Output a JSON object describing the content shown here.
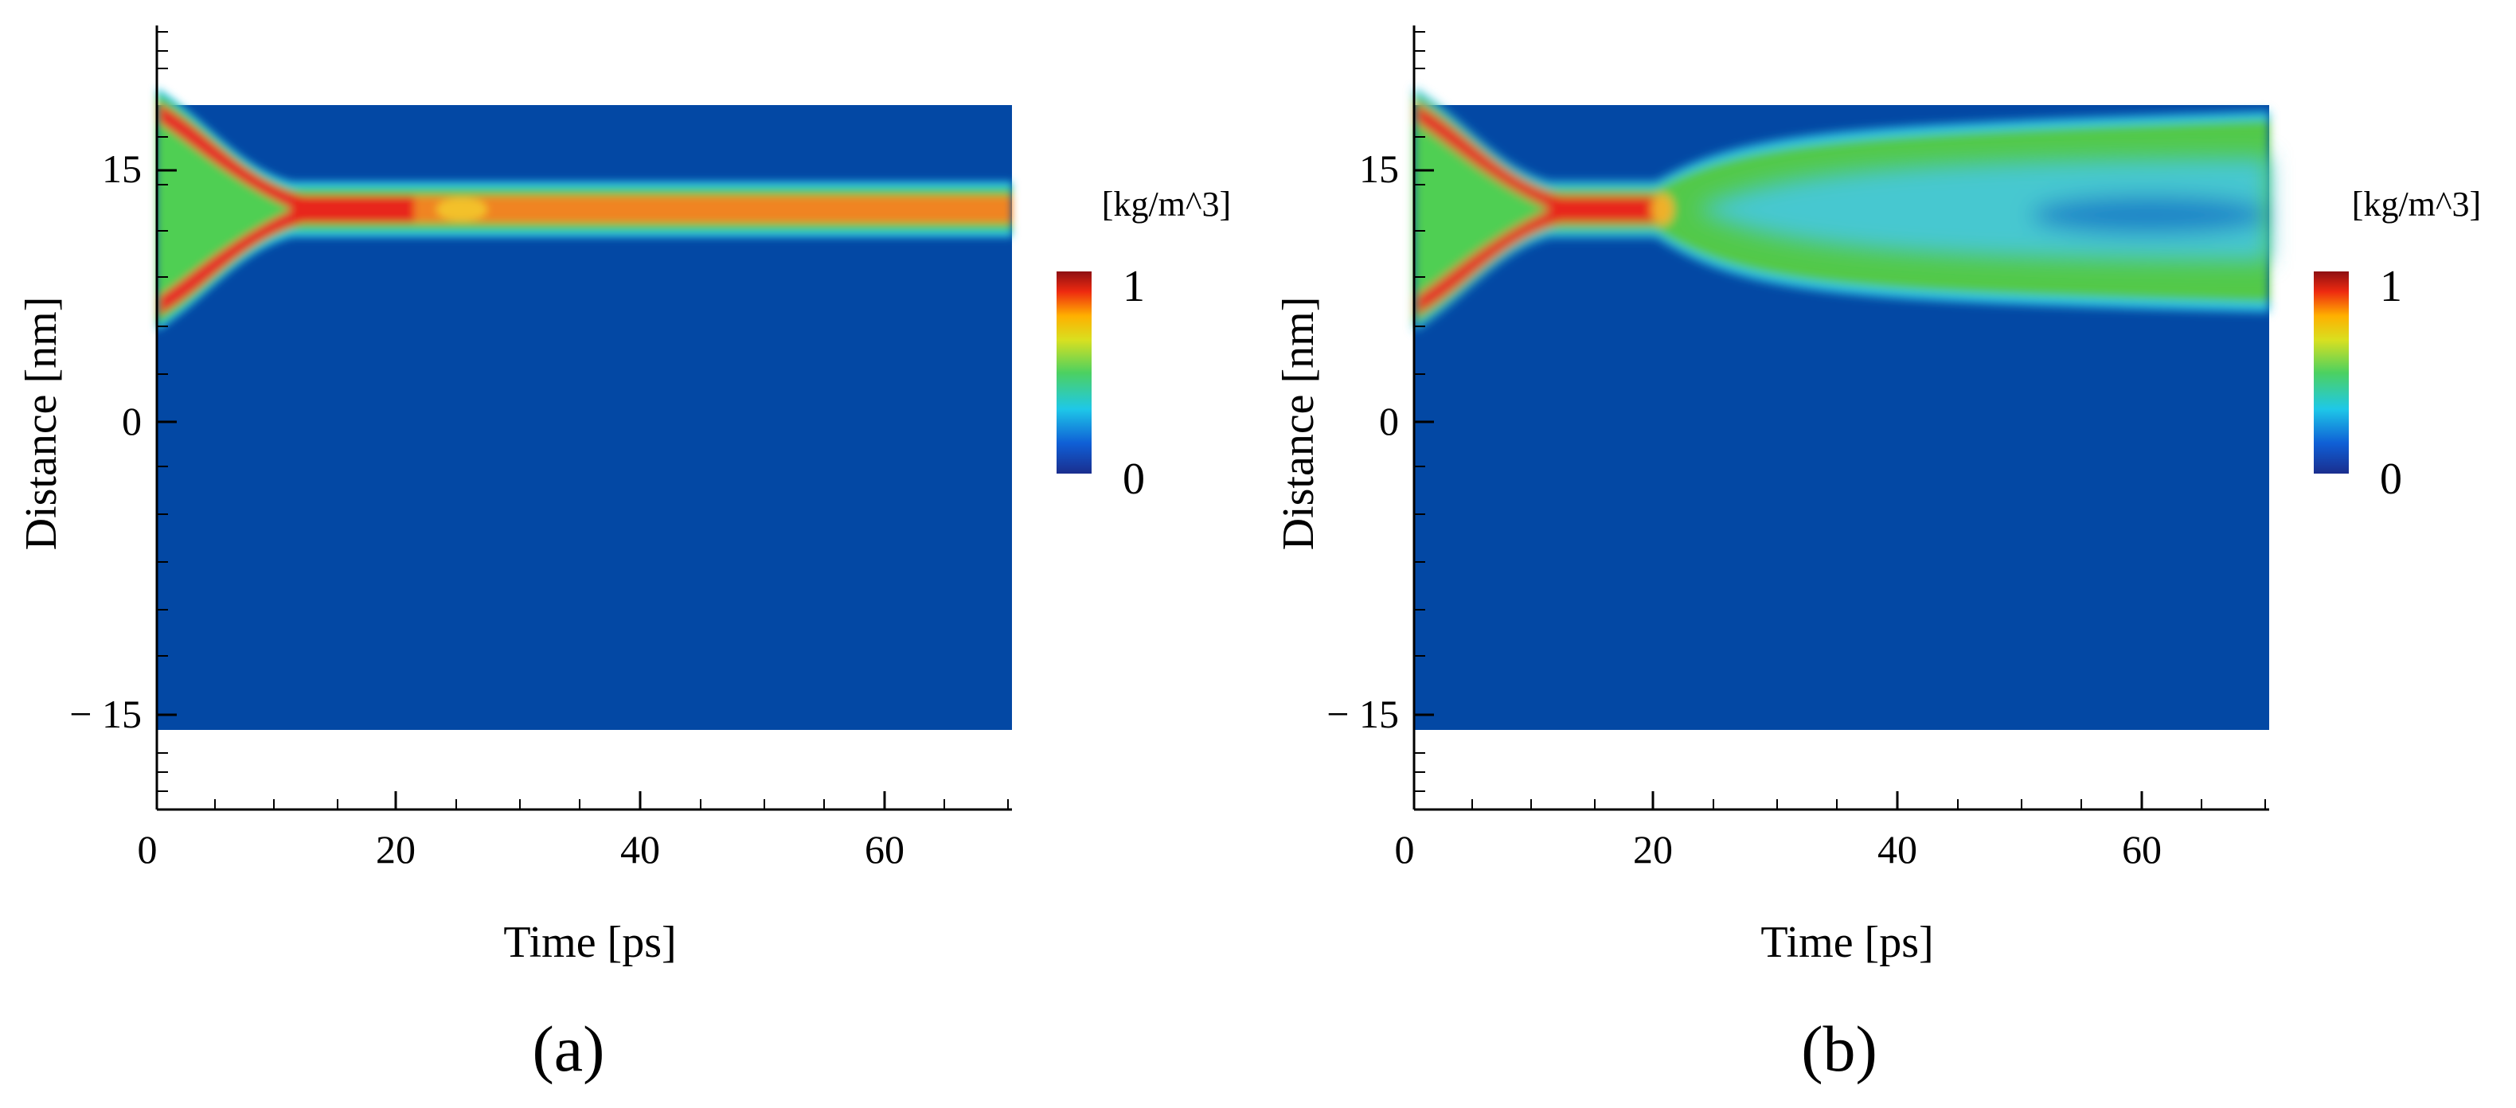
{
  "chart_data": [
    {
      "type": "heatmap",
      "panel_label": "(a)",
      "xlabel": "Time [ps]",
      "ylabel": "Distance [nm]",
      "xlim": [
        0,
        70
      ],
      "ylim": [
        -21,
        21
      ],
      "domain_y": [
        -16.5,
        16.5
      ],
      "xticks": [
        "0",
        "20",
        "40",
        "60"
      ],
      "yticks": [
        "15",
        "0",
        "− 15"
      ],
      "colorbar": {
        "title": "[kg/m^3]",
        "min_label": "0",
        "max_label": "1",
        "range": [
          0,
          1
        ]
      },
      "regions": [
        {
          "name": "initial droplet",
          "t_range": [
            0,
            12
          ],
          "half_width_nm": [
            6,
            3.2
          ],
          "density": 0.55
        },
        {
          "name": "compressed core",
          "t_range": [
            12,
            21
          ],
          "half_width_nm": 3.2,
          "density": 0.95
        },
        {
          "name": "jet",
          "t_range": [
            21,
            70
          ],
          "half_width_nm": 3.2,
          "density": 0.82
        }
      ]
    },
    {
      "type": "heatmap",
      "panel_label": "(b)",
      "xlabel": "Time [ps]",
      "ylabel": "Distance [nm]",
      "xlim": [
        0,
        70
      ],
      "ylim": [
        -21,
        21
      ],
      "domain_y": [
        -16.5,
        16.5
      ],
      "xticks": [
        "0",
        "20",
        "40",
        "60"
      ],
      "yticks": [
        "15",
        "0",
        "− 15"
      ],
      "colorbar": {
        "title": "[kg/m^3]",
        "min_label": "0",
        "max_label": "1",
        "range": [
          0,
          1
        ]
      },
      "regions": [
        {
          "name": "initial droplet",
          "t_range": [
            0,
            12
          ],
          "half_width_nm": [
            6,
            3.2
          ],
          "density": 0.55
        },
        {
          "name": "compressed core",
          "t_range": [
            12,
            21.5
          ],
          "half_width_nm": 3.2,
          "density": 0.95
        },
        {
          "name": "expanding plume",
          "t_range": [
            21.5,
            70
          ],
          "half_width_nm": [
            3.2,
            7.5
          ],
          "density": 0.45
        }
      ]
    }
  ]
}
